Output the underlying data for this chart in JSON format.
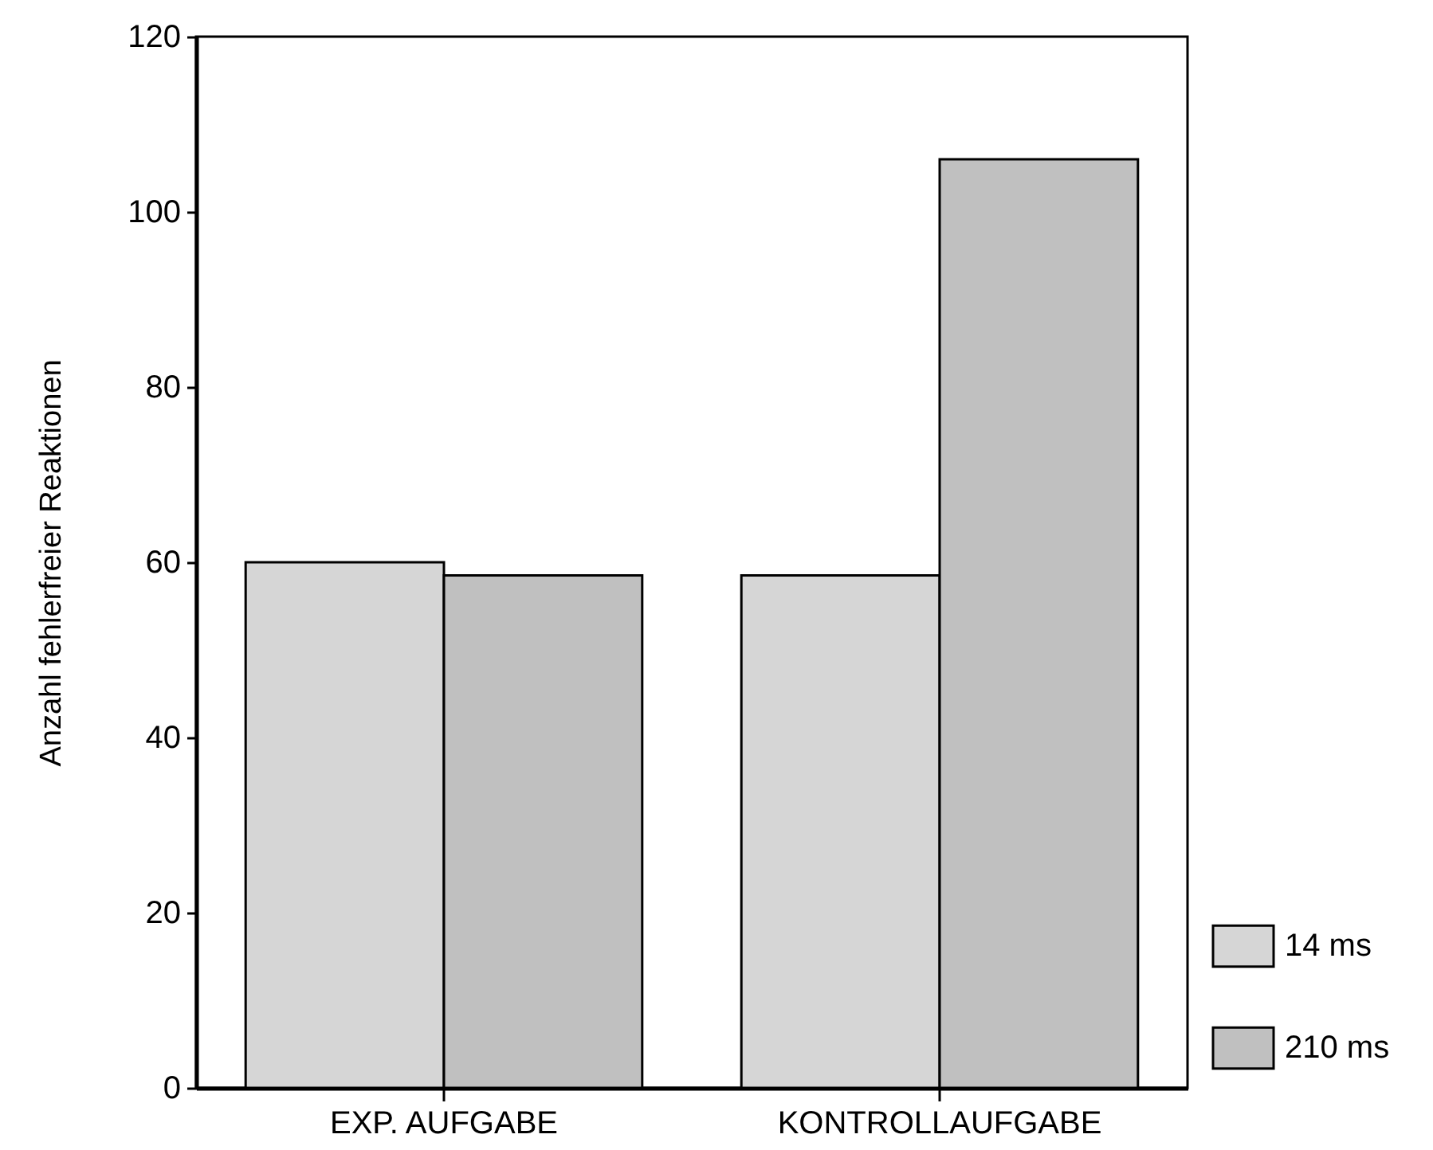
{
  "chart_data": {
    "type": "bar",
    "ylabel": "Anzahl fehlerfreier Reaktionen",
    "categories": [
      "EXP. AUFGABE",
      "KONTROLLAUFGABE"
    ],
    "series": [
      {
        "name": "14 ms",
        "color": "#d6d6d6",
        "values": [
          60,
          58.5
        ]
      },
      {
        "name": "210 ms",
        "color": "#c0c0c0",
        "values": [
          58.5,
          106
        ]
      }
    ],
    "ylim": [
      0,
      120
    ],
    "yticks": [
      0,
      20,
      40,
      60,
      80,
      100,
      120
    ],
    "grid": false,
    "legend": "bottom right"
  }
}
